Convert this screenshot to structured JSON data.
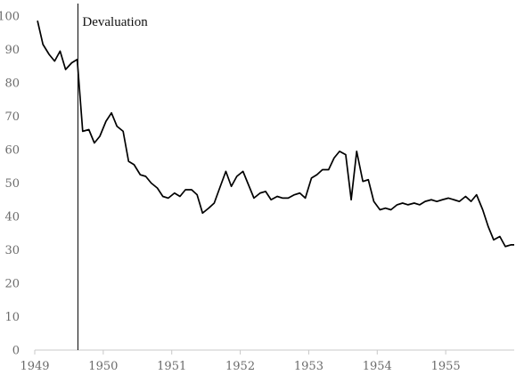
{
  "chart_data": {
    "type": "line",
    "title": "",
    "xlabel": "",
    "ylabel": "",
    "xlim": [
      1949.0,
      1956.0
    ],
    "ylim": [
      0,
      100
    ],
    "x_ticks": [
      1949,
      1950,
      1951,
      1952,
      1953,
      1954,
      1955
    ],
    "y_ticks": [
      0,
      10,
      20,
      30,
      40,
      50,
      60,
      70,
      80,
      90,
      100
    ],
    "grid": false,
    "legend": "none",
    "line_color": "#000000",
    "annotation": {
      "text": "Devaluation",
      "x": 1949.63
    },
    "series": [
      {
        "x": [
          1949.04,
          1949.12,
          1949.21,
          1949.29,
          1949.37,
          1949.45,
          1949.54,
          1949.62,
          1949.7,
          1949.79,
          1949.87,
          1949.95,
          1950.04,
          1950.12,
          1950.2,
          1950.29,
          1950.37,
          1950.45,
          1950.54,
          1950.62,
          1950.7,
          1950.79,
          1950.87,
          1950.95,
          1951.04,
          1951.12,
          1951.2,
          1951.29,
          1951.37,
          1951.45,
          1951.54,
          1951.62,
          1951.7,
          1951.79,
          1951.87,
          1951.95,
          1952.04,
          1952.12,
          1952.2,
          1952.29,
          1952.37,
          1952.45,
          1952.54,
          1952.62,
          1952.7,
          1952.79,
          1952.87,
          1952.95,
          1953.04,
          1953.12,
          1953.2,
          1953.29,
          1953.37,
          1953.45,
          1953.54,
          1953.62,
          1953.7,
          1953.79,
          1953.87,
          1953.95,
          1954.04,
          1954.12,
          1954.2,
          1954.29,
          1954.37,
          1954.45,
          1954.54,
          1954.62,
          1954.7,
          1954.79,
          1954.87,
          1954.95,
          1955.04,
          1955.12,
          1955.2,
          1955.29,
          1955.37,
          1955.45,
          1955.54,
          1955.62,
          1955.7,
          1955.79,
          1955.87,
          1955.95,
          1956.0
        ],
        "y": [
          98.6,
          91.5,
          88.5,
          86.5,
          89.5,
          84.0,
          86.0,
          87.0,
          65.5,
          66.0,
          62.0,
          64.0,
          68.5,
          71.0,
          67.0,
          65.5,
          56.5,
          55.5,
          52.5,
          52.0,
          50.0,
          48.5,
          46.0,
          45.5,
          47.0,
          46.0,
          48.0,
          48.0,
          46.5,
          41.0,
          42.5,
          44.0,
          48.5,
          53.5,
          49.0,
          52.0,
          53.5,
          49.5,
          45.5,
          47.0,
          47.5,
          45.0,
          46.0,
          45.5,
          45.5,
          46.5,
          47.0,
          45.5,
          51.5,
          52.5,
          54.0,
          54.0,
          57.5,
          59.5,
          58.5,
          45.0,
          59.5,
          50.5,
          51.0,
          44.5,
          42.0,
          42.5,
          42.0,
          43.5,
          44.0,
          43.5,
          44.0,
          43.5,
          44.5,
          45.0,
          44.5,
          45.0,
          45.5,
          45.0,
          44.5,
          46.0,
          44.5,
          46.5,
          42.0,
          37.0,
          33.0,
          34.0,
          31.0,
          31.5,
          31.5
        ]
      }
    ]
  }
}
